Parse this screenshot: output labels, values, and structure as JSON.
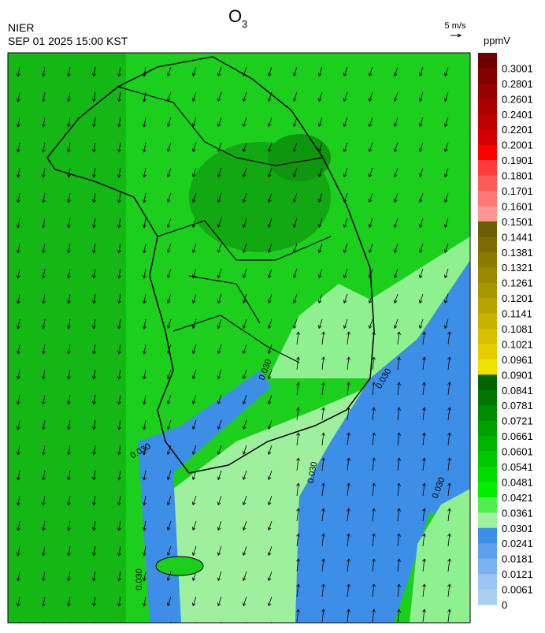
{
  "header": {
    "agency": "NIER",
    "datetime": "SEP 01 2025 15:00 KST",
    "title": {
      "text": "O",
      "subscript": "3"
    },
    "vector_scale": "5 m/s"
  },
  "colorbar": {
    "unit": "ppmV",
    "labels": [
      0.3001,
      0.2801,
      0.2601,
      0.2401,
      0.2201,
      0.2001,
      0.1901,
      0.1801,
      0.1701,
      0.1601,
      0.1501,
      0.1441,
      0.1381,
      0.1321,
      0.1261,
      0.1201,
      0.1141,
      0.1081,
      0.1021,
      0.0961,
      0.0901,
      0.0841,
      0.0781,
      0.0721,
      0.0661,
      0.0601,
      0.0541,
      0.0481,
      0.0421,
      0.0361,
      0.0301,
      0.0241,
      0.0181,
      0.0121,
      0.0061,
      0
    ],
    "colors": [
      "#6e0000",
      "#820000",
      "#960000",
      "#aa0000",
      "#be0000",
      "#d20000",
      "#ff0000",
      "#ff3c3c",
      "#ff5a5a",
      "#ff7878",
      "#ff9696",
      "#6b5e00",
      "#7a6c00",
      "#8a7a00",
      "#998800",
      "#a89600",
      "#b8a400",
      "#c7b200",
      "#d6c000",
      "#e5ce00",
      "#f0e000",
      "#006400",
      "#007800",
      "#008c00",
      "#00a000",
      "#00b400",
      "#00c800",
      "#00dc00",
      "#00f000",
      "#50f050",
      "#a0f0a0",
      "#3c8ee6",
      "#5ca0ea",
      "#7cb2ee",
      "#9cc4f2",
      "#a8d0f0"
    ]
  },
  "map": {
    "contour_labels": [
      "0.030",
      "0.030",
      "0.030",
      "0.030",
      "0.030",
      "0.030"
    ]
  }
}
